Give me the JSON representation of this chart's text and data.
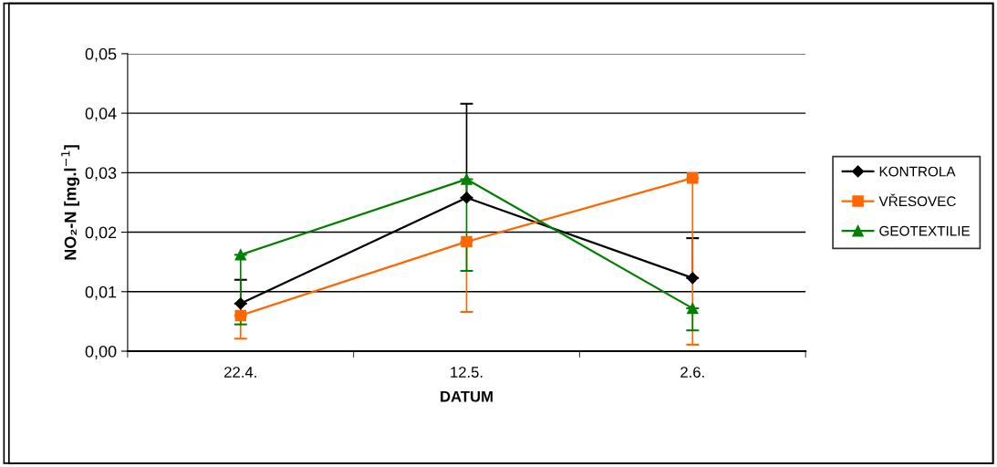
{
  "chart_data": {
    "type": "line",
    "xlabel": "DATUM",
    "ylabel": "NO₂-N [mg.l$^{−1}$]",
    "categories": [
      "22.4.",
      "12.5.",
      "2.6."
    ],
    "series": [
      {
        "name": "KONTROLA",
        "color": "#000000",
        "marker": "diamond",
        "values": [
          0.008,
          0.0258,
          0.0123
        ],
        "errors": [
          [
            0.008,
            0.012
          ],
          [
            0.0258,
            0.0416
          ],
          [
            0.0123,
            0.019
          ]
        ]
      },
      {
        "name": "VŘESOVEC",
        "color": "#ff6600",
        "marker": "square",
        "values": [
          0.006,
          0.0184,
          0.0291
        ],
        "errors": [
          [
            0.0021,
            0.006
          ],
          [
            0.0066,
            0.0184
          ],
          [
            0.0011,
            0.0291
          ]
        ]
      },
      {
        "name": "GEOTEXTILIE",
        "color": "#008000",
        "marker": "triangle",
        "values": [
          0.0162,
          0.0289,
          0.0072
        ],
        "errors": [
          [
            0.0045,
            0.0162
          ],
          [
            0.0135,
            0.0289
          ],
          [
            0.0035,
            0.0072
          ]
        ]
      }
    ],
    "ylim": [
      0,
      0.05
    ],
    "yticks": [
      {
        "value": 0,
        "label": "0,00"
      },
      {
        "value": 0.01,
        "label": "0,01"
      },
      {
        "value": 0.02,
        "label": "0,02"
      },
      {
        "value": 0.03,
        "label": "0,03"
      },
      {
        "value": 0.04,
        "label": "0,04"
      },
      {
        "value": 0.05,
        "label": "0,05"
      }
    ],
    "grid": "y",
    "legend": "right",
    "line_style": "solid"
  }
}
